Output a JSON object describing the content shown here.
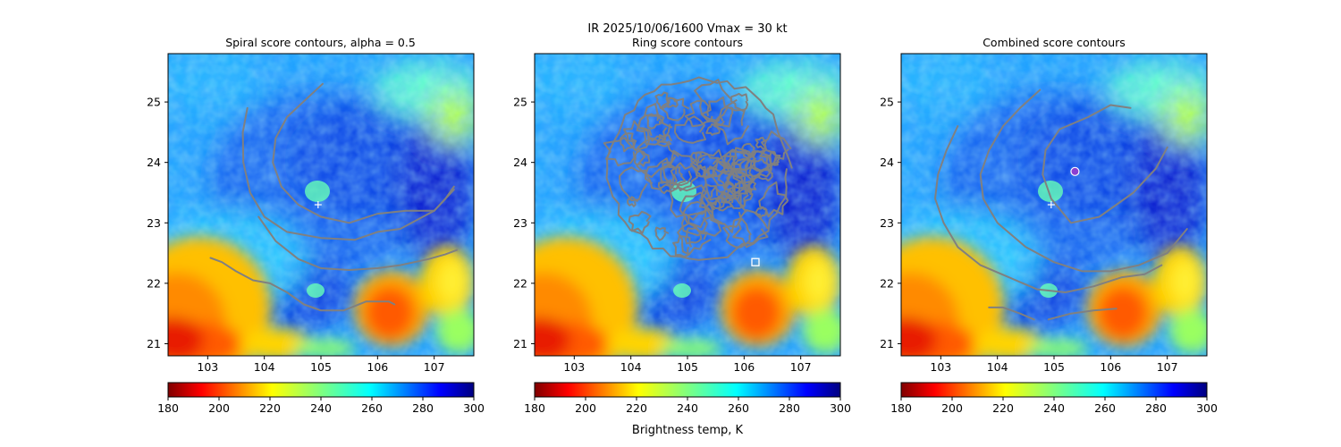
{
  "figure": {
    "suptitle_line1": "IR  2025/10/06/1600    Vmax = 30 kt",
    "colorbar_label": "Brightness temp, K"
  },
  "colors": {
    "contour": "#808080",
    "marker": "#ffffff",
    "center_marker": "#8b3fd1"
  },
  "chart_data": [
    {
      "type": "heatmap",
      "title": "Spiral score contours, alpha =  0.5",
      "xlim": [
        102.3,
        107.7
      ],
      "ylim": [
        20.8,
        25.8
      ],
      "xticks": [
        "103",
        "104",
        "105",
        "106",
        "107"
      ],
      "yticks": [
        "21",
        "22",
        "23",
        "24",
        "25"
      ],
      "colorbar": {
        "ticks": [
          "180",
          "200",
          "220",
          "240",
          "260",
          "280",
          "300"
        ],
        "range": [
          180,
          300
        ],
        "colormap": "jet_r"
      },
      "contours": [
        [
          [
            103.7,
            24.9
          ],
          [
            103.62,
            24.5
          ],
          [
            103.63,
            24.0
          ],
          [
            103.75,
            23.5
          ],
          [
            104.0,
            23.1
          ],
          [
            104.4,
            22.85
          ],
          [
            105.0,
            22.75
          ],
          [
            105.6,
            22.72
          ],
          [
            106.0,
            22.85
          ],
          [
            106.4,
            22.9
          ],
          [
            107.0,
            23.2
          ],
          [
            107.2,
            23.4
          ],
          [
            107.35,
            23.6
          ]
        ],
        [
          [
            105.03,
            25.3
          ],
          [
            104.8,
            25.1
          ],
          [
            104.4,
            24.75
          ],
          [
            104.2,
            24.4
          ],
          [
            104.15,
            24.0
          ],
          [
            104.3,
            23.6
          ],
          [
            104.6,
            23.3
          ],
          [
            105.0,
            23.1
          ],
          [
            105.5,
            23.0
          ],
          [
            106.0,
            23.15
          ],
          [
            106.5,
            23.2
          ],
          [
            107.0,
            23.2
          ],
          [
            107.35,
            23.55
          ]
        ],
        [
          [
            103.9,
            23.1
          ],
          [
            104.2,
            22.7
          ],
          [
            104.6,
            22.4
          ],
          [
            105.0,
            22.25
          ],
          [
            105.5,
            22.22
          ],
          [
            106.0,
            22.25
          ],
          [
            106.4,
            22.3
          ],
          [
            106.9,
            22.4
          ],
          [
            107.2,
            22.48
          ],
          [
            107.4,
            22.55
          ]
        ],
        [
          [
            103.05,
            22.42
          ],
          [
            103.25,
            22.35
          ],
          [
            103.5,
            22.2
          ],
          [
            103.8,
            22.05
          ],
          [
            104.1,
            22.0
          ],
          [
            104.4,
            21.85
          ],
          [
            104.7,
            21.65
          ],
          [
            105.0,
            21.55
          ],
          [
            105.4,
            21.55
          ],
          [
            105.8,
            21.7
          ],
          [
            106.2,
            21.7
          ],
          [
            106.3,
            21.65
          ]
        ]
      ],
      "markers": [
        {
          "type": "cross",
          "x": 104.95,
          "y": 23.3
        }
      ]
    },
    {
      "type": "heatmap",
      "title": "Ring score contours",
      "xlim": [
        102.3,
        107.7
      ],
      "ylim": [
        20.8,
        25.8
      ],
      "xticks": [
        "103",
        "104",
        "105",
        "106",
        "107"
      ],
      "yticks": [
        "21",
        "22",
        "23",
        "24",
        "25"
      ],
      "colorbar": {
        "ticks": [
          "180",
          "200",
          "220",
          "240",
          "260",
          "280",
          "300"
        ],
        "range": [
          180,
          300
        ],
        "colormap": "jet_r"
      },
      "ring_contour_region": {
        "center": [
          105.2,
          23.9
        ],
        "radius_deg": 1.6
      },
      "markers": [
        {
          "type": "square",
          "x": 106.2,
          "y": 22.35
        }
      ]
    },
    {
      "type": "heatmap",
      "title": "Combined score contours",
      "xlim": [
        102.3,
        107.7
      ],
      "ylim": [
        20.8,
        25.8
      ],
      "xticks": [
        "103",
        "104",
        "105",
        "106",
        "107"
      ],
      "yticks": [
        "21",
        "22",
        "23",
        "24",
        "25"
      ],
      "colorbar": {
        "ticks": [
          "180",
          "200",
          "220",
          "240",
          "260",
          "280",
          "300"
        ],
        "range": [
          180,
          300
        ],
        "colormap": "jet_r"
      },
      "contours": [
        [
          [
            104.75,
            25.2
          ],
          [
            104.4,
            24.9
          ],
          [
            104.1,
            24.6
          ],
          [
            103.85,
            24.2
          ],
          [
            103.7,
            23.8
          ],
          [
            103.75,
            23.4
          ],
          [
            104.0,
            23.0
          ],
          [
            104.5,
            22.6
          ],
          [
            105.0,
            22.35
          ],
          [
            105.5,
            22.2
          ],
          [
            106.0,
            22.2
          ],
          [
            106.5,
            22.3
          ],
          [
            107.0,
            22.5
          ],
          [
            107.35,
            22.9
          ]
        ],
        [
          [
            103.3,
            24.6
          ],
          [
            103.1,
            24.2
          ],
          [
            102.95,
            23.8
          ],
          [
            102.9,
            23.4
          ],
          [
            103.05,
            23.0
          ],
          [
            103.3,
            22.6
          ],
          [
            103.7,
            22.3
          ],
          [
            104.2,
            22.1
          ],
          [
            104.7,
            21.9
          ],
          [
            105.2,
            21.85
          ],
          [
            105.7,
            21.95
          ],
          [
            106.2,
            22.1
          ],
          [
            106.6,
            22.15
          ],
          [
            106.9,
            22.3
          ]
        ],
        [
          [
            106.35,
            24.9
          ],
          [
            106.0,
            24.95
          ],
          [
            105.6,
            24.75
          ],
          [
            105.1,
            24.55
          ],
          [
            104.85,
            24.2
          ],
          [
            104.8,
            23.8
          ],
          [
            104.95,
            23.4
          ],
          [
            105.3,
            23.0
          ],
          [
            105.8,
            23.1
          ],
          [
            106.4,
            23.5
          ],
          [
            106.8,
            23.9
          ],
          [
            107.0,
            24.25
          ]
        ],
        [
          [
            103.85,
            21.6
          ],
          [
            104.1,
            21.6
          ],
          [
            104.4,
            21.5
          ],
          [
            104.65,
            21.4
          ]
        ],
        [
          [
            104.9,
            21.4
          ],
          [
            105.3,
            21.5
          ],
          [
            105.7,
            21.55
          ],
          [
            106.1,
            21.58
          ]
        ]
      ],
      "markers": [
        {
          "type": "cross",
          "x": 104.95,
          "y": 23.3
        },
        {
          "type": "circle",
          "x": 105.37,
          "y": 23.85
        }
      ]
    }
  ]
}
